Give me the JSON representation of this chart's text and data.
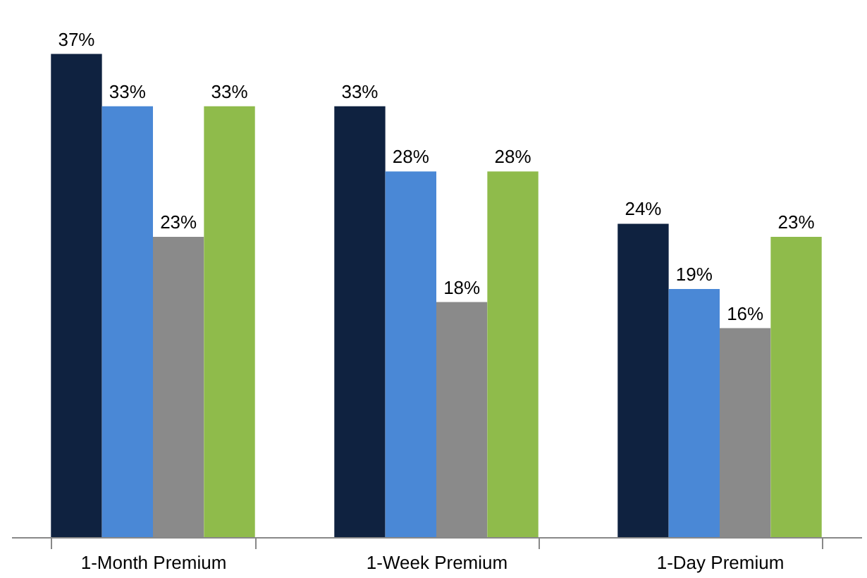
{
  "chart_data": {
    "type": "bar",
    "categories": [
      "1-Month Premium",
      "1-Week Premium",
      "1-Day Premium"
    ],
    "series": [
      {
        "color": "#0f2240",
        "values": [
          37,
          33,
          24
        ],
        "value_labels": [
          "37%",
          "33%",
          "24%"
        ]
      },
      {
        "color": "#4a88d6",
        "values": [
          33,
          28,
          19
        ],
        "value_labels": [
          "33%",
          "28%",
          "19%"
        ]
      },
      {
        "color": "#8a8a8a",
        "values": [
          23,
          18,
          16
        ],
        "value_labels": [
          "23%",
          "18%",
          "16%"
        ]
      },
      {
        "color": "#8fbb4b",
        "values": [
          33,
          28,
          23
        ],
        "value_labels": [
          "33%",
          "28%",
          "23%"
        ]
      }
    ],
    "legend": false
  }
}
